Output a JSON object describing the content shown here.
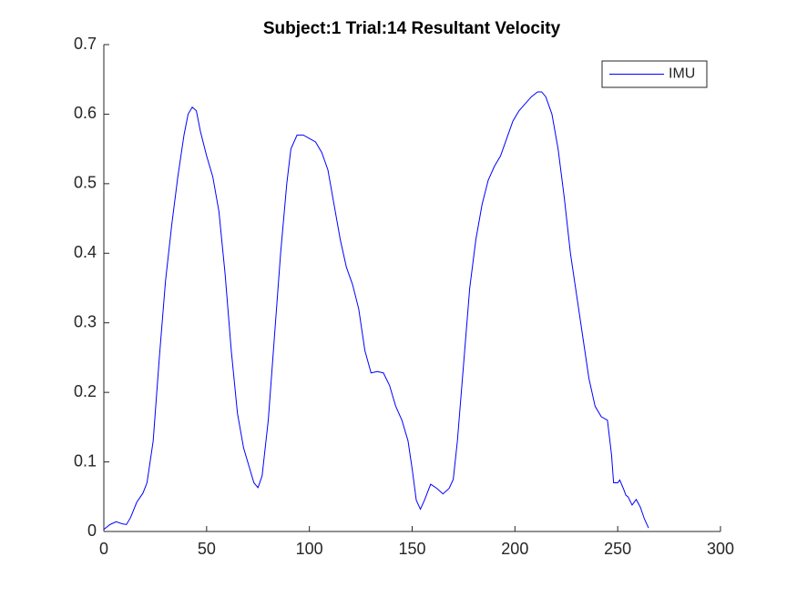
{
  "chart_data": {
    "type": "line",
    "title": "Subject:1 Trial:14 Resultant Velocity",
    "x": [
      0,
      3,
      6,
      9,
      11,
      13,
      16,
      19,
      21,
      24,
      27,
      30,
      33,
      36,
      39,
      41,
      43,
      45,
      47,
      50,
      53,
      56,
      59,
      62,
      65,
      68,
      71,
      73,
      75,
      77,
      80,
      83,
      86,
      89,
      91,
      94,
      97,
      100,
      103,
      106,
      109,
      112,
      115,
      118,
      121,
      124,
      127,
      130,
      133,
      136,
      139,
      142,
      145,
      148,
      150,
      152,
      154,
      156,
      159,
      162,
      165,
      168,
      170,
      172,
      175,
      178,
      181,
      184,
      187,
      190,
      193,
      196,
      199,
      202,
      205,
      208,
      211,
      213,
      215,
      218,
      221,
      224,
      227,
      230,
      233,
      236,
      239,
      242,
      245,
      247,
      248,
      250,
      251,
      253,
      254,
      255,
      257,
      259,
      261,
      263,
      265
    ],
    "series": [
      {
        "name": "IMU",
        "color": "#0000ff",
        "values": [
          0.003,
          0.01,
          0.014,
          0.011,
          0.01,
          0.02,
          0.042,
          0.055,
          0.07,
          0.13,
          0.25,
          0.36,
          0.44,
          0.51,
          0.57,
          0.6,
          0.61,
          0.605,
          0.575,
          0.54,
          0.51,
          0.46,
          0.37,
          0.26,
          0.17,
          0.12,
          0.09,
          0.07,
          0.063,
          0.08,
          0.16,
          0.28,
          0.4,
          0.5,
          0.55,
          0.57,
          0.57,
          0.565,
          0.56,
          0.545,
          0.52,
          0.47,
          0.42,
          0.38,
          0.355,
          0.32,
          0.26,
          0.228,
          0.23,
          0.228,
          0.21,
          0.18,
          0.16,
          0.13,
          0.09,
          0.045,
          0.032,
          0.045,
          0.068,
          0.062,
          0.054,
          0.062,
          0.075,
          0.13,
          0.24,
          0.35,
          0.42,
          0.47,
          0.505,
          0.525,
          0.54,
          0.565,
          0.59,
          0.605,
          0.615,
          0.625,
          0.632,
          0.632,
          0.625,
          0.6,
          0.55,
          0.48,
          0.4,
          0.34,
          0.28,
          0.22,
          0.18,
          0.165,
          0.16,
          0.11,
          0.07,
          0.07,
          0.074,
          0.06,
          0.052,
          0.05,
          0.038,
          0.046,
          0.035,
          0.018,
          0.005
        ]
      }
    ],
    "xlim": [
      0,
      300
    ],
    "xticks": [
      0,
      50,
      100,
      150,
      200,
      250,
      300
    ],
    "ylim": [
      0,
      0.7
    ],
    "yticks": [
      0,
      0.1,
      0.2,
      0.3,
      0.4,
      0.5,
      0.6,
      0.7
    ],
    "legend": "top-right"
  }
}
